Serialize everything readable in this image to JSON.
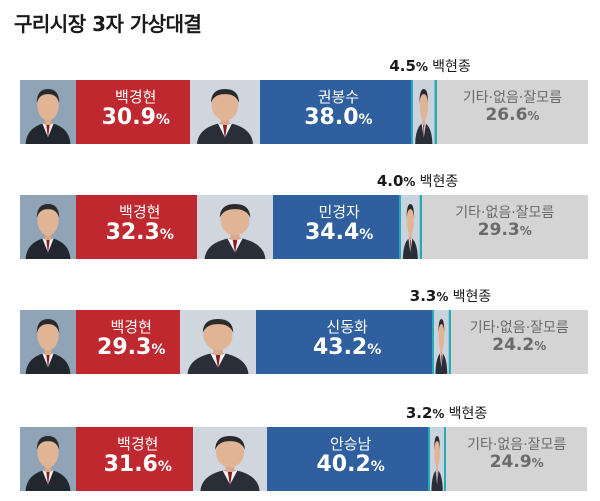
{
  "title": "구리시장 3자 가상대결",
  "chart_data": {
    "type": "bar",
    "stacked": true,
    "orientation": "horizontal",
    "title": "구리시장 3자 가상대결",
    "unit": "%",
    "rows": [
      {
        "segments": [
          {
            "name": "백경현",
            "value": 30.9,
            "color": "#c0282f"
          },
          {
            "name": "권봉수",
            "value": 38.0,
            "color": "#2f5f9e"
          },
          {
            "name": "백현종",
            "value": 4.5,
            "color": "#27a9b8"
          },
          {
            "name": "기타·없음·잘모름",
            "value": 26.6,
            "color": "#d4d4d4"
          }
        ]
      },
      {
        "segments": [
          {
            "name": "백경현",
            "value": 32.3,
            "color": "#c0282f"
          },
          {
            "name": "민경자",
            "value": 34.4,
            "color": "#2f5f9e"
          },
          {
            "name": "백현종",
            "value": 4.0,
            "color": "#27a9b8"
          },
          {
            "name": "기타·없음·잘모름",
            "value": 29.3,
            "color": "#d4d4d4"
          }
        ]
      },
      {
        "segments": [
          {
            "name": "백경현",
            "value": 29.3,
            "color": "#c0282f"
          },
          {
            "name": "신동화",
            "value": 43.2,
            "color": "#2f5f9e"
          },
          {
            "name": "백현종",
            "value": 3.3,
            "color": "#27a9b8"
          },
          {
            "name": "기타·없음·잘모름",
            "value": 24.2,
            "color": "#d4d4d4"
          }
        ]
      },
      {
        "segments": [
          {
            "name": "백경현",
            "value": 31.6,
            "color": "#c0282f"
          },
          {
            "name": "안승남",
            "value": 40.2,
            "color": "#2f5f9e"
          },
          {
            "name": "백현종",
            "value": 3.2,
            "color": "#27a9b8"
          },
          {
            "name": "기타·없음·잘모름",
            "value": 24.9,
            "color": "#d4d4d4"
          }
        ]
      }
    ]
  }
}
